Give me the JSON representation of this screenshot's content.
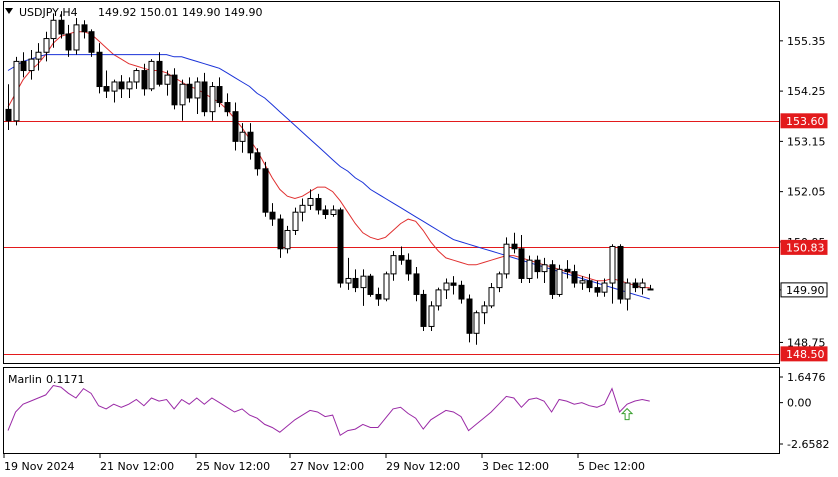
{
  "header": {
    "symbol": "USDJPY,H4",
    "ohlc": "149.92 150.01 149.90 149.90"
  },
  "indicator": {
    "name": "Marlin",
    "value": "0.1171",
    "levels": [
      "1.6476",
      "0.00",
      "-2.6582"
    ]
  },
  "colors": {
    "level_line": "#e31a1c",
    "ma_fast": "#e03030",
    "ma_slow": "#1a32d8",
    "oscillator": "#9a2aa6",
    "signal_arrow": "#3aa030",
    "candle": "#000000"
  },
  "chart_data": {
    "type": "candlestick",
    "title": "USDJPY,H4",
    "price_axis_ticks": [
      "155.35",
      "154.25",
      "153.15",
      "152.05",
      "150.95",
      "149.90",
      "148.75"
    ],
    "price_range": [
      148.3,
      156.2
    ],
    "time_axis_labels": [
      "19 Nov 2024",
      "21 Nov 12:00",
      "25 Nov 12:00",
      "27 Nov 12:00",
      "29 Nov 12:00",
      "3 Dec 12:00",
      "5 Dec 12:00"
    ],
    "horizontal_levels": [
      {
        "label": "153.60",
        "value": 153.6
      },
      {
        "label": "150.83",
        "value": 150.83
      },
      {
        "label": "148.50",
        "value": 148.5
      }
    ],
    "current_price": {
      "label": "149.90",
      "value": 149.9
    },
    "candles": [
      [
        153.85,
        154.4,
        153.4,
        153.6
      ],
      [
        153.6,
        155.0,
        153.5,
        154.9
      ],
      [
        154.9,
        155.1,
        154.55,
        154.7
      ],
      [
        154.7,
        155.15,
        154.5,
        154.95
      ],
      [
        154.95,
        155.3,
        154.7,
        155.1
      ],
      [
        155.1,
        155.55,
        154.9,
        155.4
      ],
      [
        155.4,
        155.95,
        155.2,
        155.8
      ],
      [
        155.8,
        156.0,
        155.4,
        155.5
      ],
      [
        155.5,
        155.7,
        155.0,
        155.15
      ],
      [
        155.15,
        155.85,
        155.05,
        155.7
      ],
      [
        155.7,
        155.8,
        155.4,
        155.55
      ],
      [
        155.55,
        155.6,
        155.0,
        155.1
      ],
      [
        155.1,
        155.3,
        154.2,
        154.35
      ],
      [
        154.35,
        154.7,
        154.1,
        154.25
      ],
      [
        154.25,
        154.5,
        154.0,
        154.45
      ],
      [
        154.45,
        154.6,
        154.1,
        154.3
      ],
      [
        154.3,
        154.55,
        154.1,
        154.45
      ],
      [
        154.45,
        154.75,
        154.3,
        154.7
      ],
      [
        154.7,
        154.85,
        154.15,
        154.3
      ],
      [
        154.3,
        154.95,
        154.25,
        154.9
      ],
      [
        154.9,
        155.1,
        154.35,
        154.4
      ],
      [
        154.4,
        154.7,
        154.15,
        154.6
      ],
      [
        154.6,
        154.75,
        153.85,
        153.95
      ],
      [
        153.95,
        154.5,
        153.6,
        154.4
      ],
      [
        154.4,
        154.55,
        154.0,
        154.1
      ],
      [
        154.1,
        154.55,
        153.75,
        154.45
      ],
      [
        154.45,
        154.65,
        153.7,
        153.8
      ],
      [
        153.8,
        154.45,
        153.6,
        154.35
      ],
      [
        154.35,
        154.55,
        153.9,
        154.0
      ],
      [
        154.0,
        154.2,
        153.7,
        153.8
      ],
      [
        153.8,
        154.0,
        152.95,
        153.15
      ],
      [
        153.15,
        153.55,
        152.9,
        153.35
      ],
      [
        153.35,
        153.55,
        152.75,
        152.9
      ],
      [
        152.9,
        153.0,
        152.4,
        152.55
      ],
      [
        152.55,
        152.7,
        151.5,
        151.6
      ],
      [
        151.6,
        151.8,
        151.3,
        151.45
      ],
      [
        151.45,
        151.55,
        150.6,
        150.8
      ],
      [
        150.8,
        151.3,
        150.7,
        151.2
      ],
      [
        151.2,
        151.7,
        151.1,
        151.6
      ],
      [
        151.6,
        151.9,
        151.4,
        151.75
      ],
      [
        151.75,
        152.1,
        151.65,
        151.9
      ],
      [
        151.9,
        152.0,
        151.55,
        151.65
      ],
      [
        151.65,
        151.75,
        151.45,
        151.55
      ],
      [
        151.55,
        151.75,
        151.5,
        151.65
      ],
      [
        151.65,
        151.7,
        149.95,
        150.05
      ],
      [
        150.05,
        150.6,
        149.9,
        150.15
      ],
      [
        150.15,
        150.35,
        149.85,
        149.95
      ],
      [
        149.95,
        150.35,
        149.55,
        150.2
      ],
      [
        150.2,
        150.25,
        149.75,
        149.8
      ],
      [
        149.8,
        149.95,
        149.55,
        149.7
      ],
      [
        149.7,
        150.3,
        149.65,
        150.25
      ],
      [
        150.25,
        150.75,
        150.1,
        150.65
      ],
      [
        150.65,
        150.85,
        150.45,
        150.55
      ],
      [
        150.55,
        150.7,
        150.1,
        150.25
      ],
      [
        150.25,
        150.4,
        149.65,
        149.8
      ],
      [
        149.8,
        149.9,
        149.0,
        149.1
      ],
      [
        149.1,
        149.65,
        149.0,
        149.55
      ],
      [
        149.55,
        149.95,
        149.45,
        149.9
      ],
      [
        149.9,
        150.15,
        149.7,
        150.05
      ],
      [
        150.05,
        150.2,
        149.8,
        150.0
      ],
      [
        150.0,
        150.1,
        149.6,
        149.7
      ],
      [
        149.7,
        149.8,
        148.75,
        148.95
      ],
      [
        148.95,
        149.45,
        148.7,
        149.4
      ],
      [
        149.4,
        149.65,
        149.15,
        149.55
      ],
      [
        149.55,
        150.05,
        149.5,
        149.95
      ],
      [
        149.95,
        150.3,
        149.85,
        150.25
      ],
      [
        150.25,
        151.05,
        150.15,
        150.9
      ],
      [
        150.9,
        151.15,
        150.7,
        150.8
      ],
      [
        150.8,
        151.1,
        150.05,
        150.15
      ],
      [
        150.15,
        150.65,
        150.05,
        150.55
      ],
      [
        150.55,
        150.65,
        150.15,
        150.3
      ],
      [
        150.3,
        150.6,
        150.05,
        150.45
      ],
      [
        150.45,
        150.55,
        149.7,
        149.8
      ],
      [
        149.8,
        150.45,
        149.75,
        150.35
      ],
      [
        150.35,
        150.55,
        150.15,
        150.3
      ],
      [
        150.3,
        150.45,
        149.95,
        150.05
      ],
      [
        150.05,
        150.2,
        149.9,
        150.1
      ],
      [
        150.1,
        150.25,
        149.85,
        149.95
      ],
      [
        149.95,
        150.1,
        149.75,
        149.85
      ],
      [
        149.85,
        150.15,
        149.75,
        150.05
      ],
      [
        150.05,
        150.9,
        149.6,
        150.85
      ],
      [
        150.85,
        150.9,
        149.6,
        149.7
      ],
      [
        149.7,
        150.15,
        149.45,
        150.05
      ],
      [
        150.05,
        150.15,
        149.85,
        149.95
      ],
      [
        149.95,
        150.15,
        149.8,
        150.05
      ],
      [
        149.92,
        150.01,
        149.9,
        149.9
      ]
    ],
    "ma_fast": [
      153.9,
      154.2,
      154.5,
      154.7,
      154.85,
      155.05,
      155.3,
      155.45,
      155.5,
      155.55,
      155.55,
      155.5,
      155.35,
      155.2,
      155.05,
      154.95,
      154.85,
      154.8,
      154.75,
      154.7,
      154.7,
      154.65,
      154.55,
      154.45,
      154.35,
      154.3,
      154.2,
      154.1,
      154.0,
      153.85,
      153.65,
      153.45,
      153.2,
      152.95,
      152.65,
      152.35,
      152.1,
      151.95,
      151.9,
      151.95,
      152.05,
      152.15,
      152.15,
      152.05,
      151.85,
      151.6,
      151.35,
      151.15,
      151.05,
      151.0,
      151.05,
      151.2,
      151.35,
      151.45,
      151.4,
      151.2,
      150.95,
      150.75,
      150.6,
      150.55,
      150.5,
      150.45,
      150.45,
      150.5,
      150.55,
      150.6,
      150.65,
      150.65,
      150.6,
      150.55,
      150.5,
      150.45,
      150.4,
      150.35,
      150.3,
      150.25,
      150.2,
      150.15,
      150.1,
      150.1,
      150.15,
      150.1,
      150.05,
      150.0,
      149.95,
      149.95
    ],
    "ma_slow": [
      154.7,
      154.8,
      154.9,
      154.95,
      155.0,
      155.05,
      155.05,
      155.05,
      155.05,
      155.05,
      155.05,
      155.05,
      155.05,
      155.05,
      155.05,
      155.05,
      155.05,
      155.05,
      155.05,
      155.05,
      155.05,
      155.05,
      155.0,
      155.0,
      154.95,
      154.9,
      154.85,
      154.8,
      154.75,
      154.65,
      154.55,
      154.45,
      154.35,
      154.2,
      154.1,
      153.95,
      153.8,
      153.65,
      153.5,
      153.35,
      153.2,
      153.05,
      152.9,
      152.75,
      152.6,
      152.5,
      152.35,
      152.25,
      152.1,
      152.0,
      151.9,
      151.8,
      151.7,
      151.6,
      151.5,
      151.4,
      151.3,
      151.2,
      151.1,
      151.0,
      150.95,
      150.9,
      150.85,
      150.8,
      150.75,
      150.7,
      150.65,
      150.6,
      150.55,
      150.5,
      150.45,
      150.4,
      150.35,
      150.3,
      150.25,
      150.2,
      150.15,
      150.1,
      150.05,
      150.0,
      149.95,
      149.9,
      149.85,
      149.8,
      149.75,
      149.7
    ],
    "oscillator": {
      "range": [
        -2.6582,
        1.6476
      ],
      "values": [
        -1.8,
        -0.6,
        -0.1,
        0.1,
        0.3,
        0.5,
        1.1,
        1.0,
        0.6,
        0.3,
        0.9,
        0.6,
        -0.2,
        -0.4,
        -0.1,
        -0.3,
        -0.1,
        0.2,
        -0.2,
        0.3,
        0.1,
        0.2,
        -0.4,
        0.2,
        -0.1,
        0.3,
        -0.1,
        0.3,
        0.0,
        -0.3,
        -0.6,
        -0.4,
        -0.8,
        -1.0,
        -1.4,
        -1.6,
        -1.9,
        -1.5,
        -1.1,
        -0.8,
        -0.5,
        -0.6,
        -0.9,
        -0.8,
        -2.1,
        -1.8,
        -1.7,
        -1.4,
        -1.6,
        -1.6,
        -1.0,
        -0.4,
        -0.3,
        -0.7,
        -1.0,
        -1.7,
        -1.1,
        -0.8,
        -0.5,
        -0.6,
        -0.9,
        -1.8,
        -1.4,
        -1.0,
        -0.6,
        -0.1,
        0.4,
        0.3,
        -0.3,
        0.2,
        0.3,
        0.1,
        -0.6,
        0.2,
        0.1,
        -0.1,
        0.0,
        -0.2,
        -0.3,
        -0.1,
        0.9,
        -0.6,
        -0.1,
        0.1,
        0.2,
        0.1
      ],
      "signal_arrow_index": 82
    }
  }
}
